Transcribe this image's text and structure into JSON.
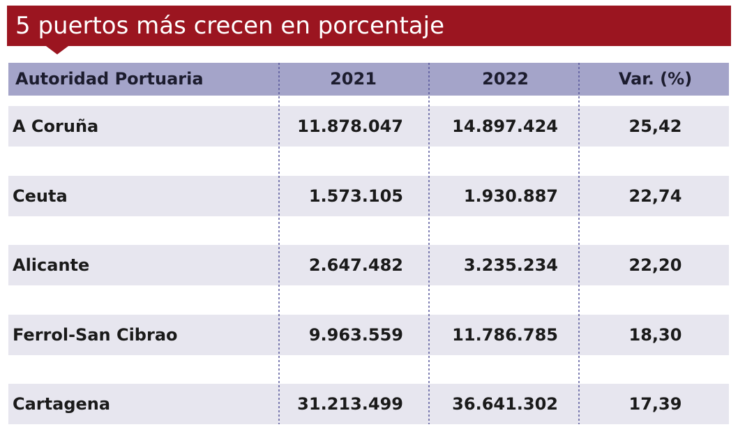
{
  "header": {
    "title": "5 puertos más crecen en porcentaje"
  },
  "table": {
    "columns": [
      "Autoridad Portuaria",
      "2021",
      "2022",
      "Var. (%)"
    ],
    "rows": [
      [
        "A Coruña",
        "11.878.047",
        "14.897.424",
        "25,42"
      ],
      [
        "Ceuta",
        "1.573.105",
        "1.930.887",
        "22,74"
      ],
      [
        "Alicante",
        "2.647.482",
        "3.235.234",
        "22,20"
      ],
      [
        "Ferrol-San Cibrao",
        "9.963.559",
        "11.786.785",
        "18,30"
      ],
      [
        "Cartagena",
        "31.213.499",
        "36.641.302",
        "17,39"
      ]
    ]
  }
}
